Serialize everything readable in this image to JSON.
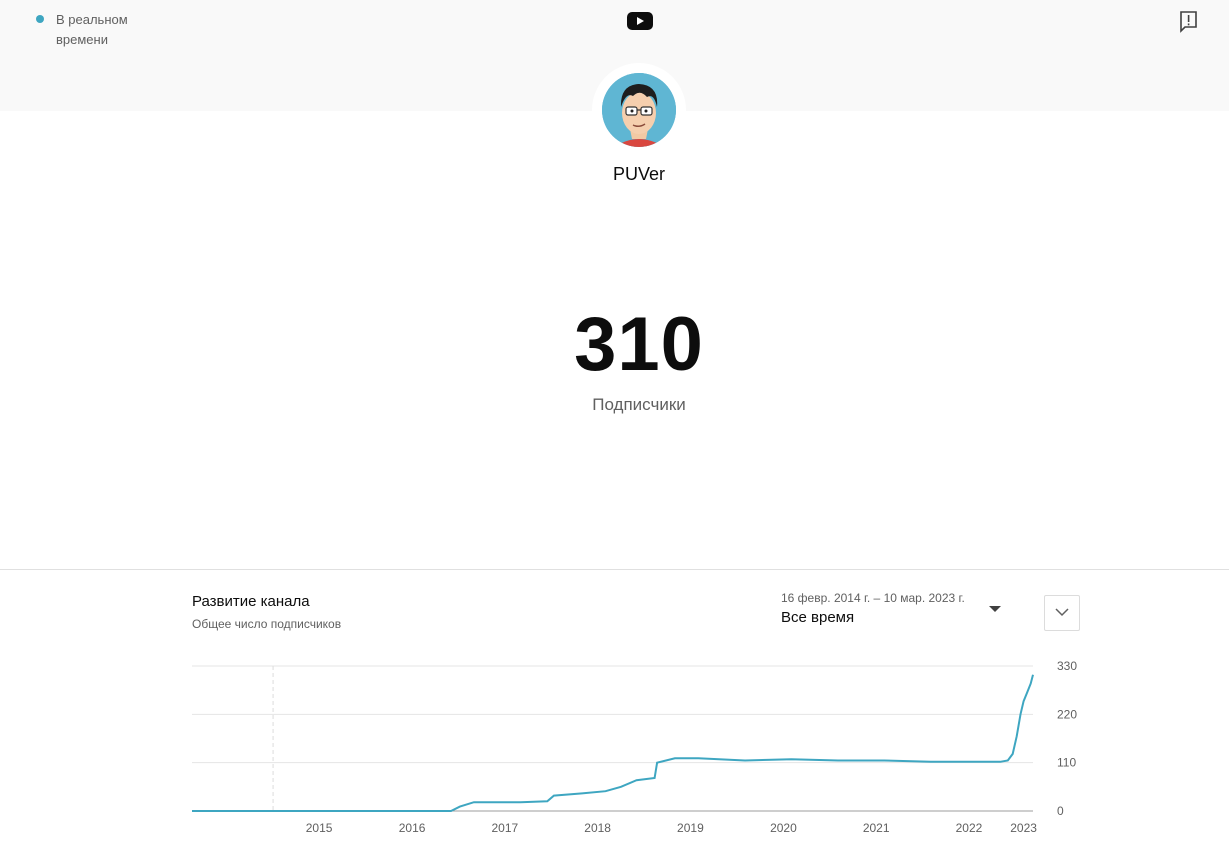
{
  "header": {
    "live_label": "В реальном времени",
    "logo_icon": "youtube-logo-icon",
    "report_icon": "feedback-icon",
    "accent_color": "#3ea6c1"
  },
  "channel": {
    "name": "PUVer",
    "avatar_icon": "cartoon-avatar"
  },
  "counter": {
    "value": "310",
    "label": "Подписчики"
  },
  "growth": {
    "title": "Развитие канала",
    "subtitle": "Общее число подписчиков",
    "date_range": "16 февр. 2014 г. – 10 мар. 2023 г.",
    "period": "Все время",
    "expand_icon": "chevron-down-icon"
  },
  "chart_data": {
    "type": "line",
    "title": "",
    "xlabel": "",
    "ylabel": "",
    "x_ticks": [
      "2015",
      "2016",
      "2017",
      "2018",
      "2019",
      "2020",
      "2021",
      "2022",
      "2023"
    ],
    "y_ticks": [
      "0",
      "110",
      "220",
      "330"
    ],
    "ylim": [
      0,
      330
    ],
    "xlim": [
      "2014-02-16",
      "2023-03-10"
    ],
    "grid": true,
    "line_color": "#3ea6c1",
    "series": [
      {
        "x": [
          "2014-02-16",
          "2016-12-01",
          "2017-01-05",
          "2017-03-01",
          "2017-06-01",
          "2017-09-01",
          "2017-12-15",
          "2018-01-10",
          "2018-05-01",
          "2018-08-01",
          "2018-10-01",
          "2018-12-01",
          "2019-02-10",
          "2019-02-20",
          "2019-05-01",
          "2019-08-01",
          "2020-02-01",
          "2020-08-01",
          "2021-02-01",
          "2021-08-01",
          "2022-02-01",
          "2022-08-01",
          "2022-11-01",
          "2022-12-01",
          "2022-12-20",
          "2023-01-05",
          "2023-01-20",
          "2023-02-01",
          "2023-02-15",
          "2023-03-01",
          "2023-03-10"
        ],
        "y": [
          0,
          0,
          10,
          20,
          20,
          20,
          22,
          35,
          40,
          45,
          55,
          70,
          75,
          110,
          120,
          120,
          115,
          118,
          115,
          115,
          112,
          112,
          112,
          115,
          130,
          170,
          220,
          250,
          270,
          290,
          310
        ]
      }
    ]
  }
}
